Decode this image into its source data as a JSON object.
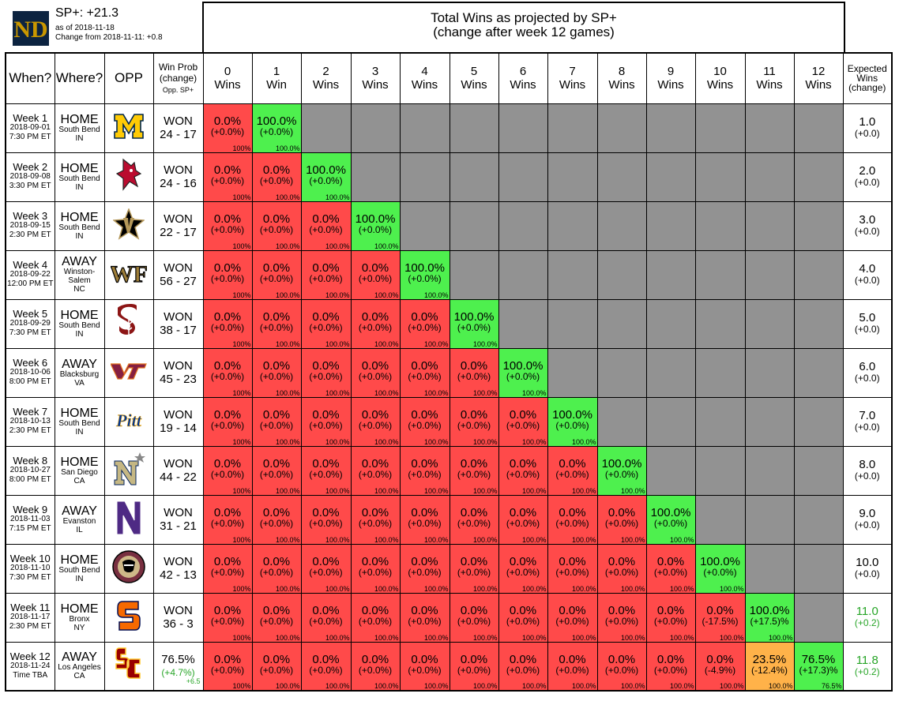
{
  "header": {
    "sp_plus": "SP+: +21.3",
    "as_of": "as of 2018-11-18",
    "change_from": "Change from 2018-11-11: +0.8",
    "title_line1": "Total Wins as projected by SP+",
    "title_line2": "(change after week 12 games)",
    "logo_icon": "notre-dame-nd-logo-icon"
  },
  "columns": {
    "when": "When?",
    "where": "Where?",
    "opp": "OPP",
    "winprob_line1": "Win Prob",
    "winprob_line2": "(change)",
    "winprob_line3": "Opp. SP+",
    "win_counts": [
      "0",
      "1",
      "2",
      "3",
      "4",
      "5",
      "6",
      "7",
      "8",
      "9",
      "10",
      "11",
      "12"
    ],
    "win_word": "Wins",
    "win_word_singular": "Win",
    "expected_line1": "Expected",
    "expected_line2": "Wins",
    "expected_line3": "(change)"
  },
  "colors": {
    "red": "#ff4a4a",
    "green": "#4ef04e",
    "orange": "#ffb249",
    "gray": "#929292",
    "highlight_text": "#27a527"
  },
  "games": [
    {
      "week": "Week 1",
      "date": "2018-09-01",
      "time": "7:30 PM ET",
      "ha": "HOME",
      "city": "South Bend",
      "state": "IN",
      "opp_icon": "michigan-block-m-logo-icon",
      "result_label": "WON",
      "score": "24 - 17",
      "expected": "1.0",
      "exp_change": "(+0.0)",
      "exp_highlight": false,
      "cells": [
        {
          "p": "0.0%",
          "c": "(+0.0%)",
          "cum": "100%",
          "color": "red"
        },
        {
          "p": "100.0%",
          "c": "(+0.0%)",
          "cum": "100.0%",
          "color": "green"
        }
      ]
    },
    {
      "week": "Week 2",
      "date": "2018-09-08",
      "time": "3:30 PM ET",
      "ha": "HOME",
      "city": "South Bend",
      "state": "IN",
      "opp_icon": "ball-state-cardinal-logo-icon",
      "result_label": "WON",
      "score": "24 - 16",
      "expected": "2.0",
      "exp_change": "(+0.0)",
      "exp_highlight": false,
      "cells": [
        {
          "p": "0.0%",
          "c": "(+0.0%)",
          "cum": "100%",
          "color": "red"
        },
        {
          "p": "0.0%",
          "c": "(+0.0%)",
          "cum": "100.0%",
          "color": "red"
        },
        {
          "p": "100.0%",
          "c": "(+0.0%)",
          "cum": "100.0%",
          "color": "green"
        }
      ]
    },
    {
      "week": "Week 3",
      "date": "2018-09-15",
      "time": "2:30 PM ET",
      "ha": "HOME",
      "city": "South Bend",
      "state": "IN",
      "opp_icon": "vanderbilt-star-v-logo-icon",
      "result_label": "WON",
      "score": "22 - 17",
      "expected": "3.0",
      "exp_change": "(+0.0)",
      "exp_highlight": false,
      "cells": [
        {
          "p": "0.0%",
          "c": "(+0.0%)",
          "cum": "100%",
          "color": "red"
        },
        {
          "p": "0.0%",
          "c": "(+0.0%)",
          "cum": "100.0%",
          "color": "red"
        },
        {
          "p": "0.0%",
          "c": "(+0.0%)",
          "cum": "100.0%",
          "color": "red"
        },
        {
          "p": "100.0%",
          "c": "(+0.0%)",
          "cum": "100.0%",
          "color": "green"
        }
      ]
    },
    {
      "week": "Week 4",
      "date": "2018-09-22",
      "time": "12:00 PM ET",
      "ha": "AWAY",
      "city": "Winston-Salem",
      "state": "NC",
      "opp_icon": "wake-forest-wf-logo-icon",
      "result_label": "WON",
      "score": "56 - 27",
      "expected": "4.0",
      "exp_change": "(+0.0)",
      "exp_highlight": false,
      "cells": [
        {
          "p": "0.0%",
          "c": "(+0.0%)",
          "cum": "100%",
          "color": "red"
        },
        {
          "p": "0.0%",
          "c": "(+0.0%)",
          "cum": "100.0%",
          "color": "red"
        },
        {
          "p": "0.0%",
          "c": "(+0.0%)",
          "cum": "100.0%",
          "color": "red"
        },
        {
          "p": "0.0%",
          "c": "(+0.0%)",
          "cum": "100.0%",
          "color": "red"
        },
        {
          "p": "100.0%",
          "c": "(+0.0%)",
          "cum": "100.0%",
          "color": "green"
        }
      ]
    },
    {
      "week": "Week 5",
      "date": "2018-09-29",
      "time": "7:30 PM ET",
      "ha": "HOME",
      "city": "South Bend",
      "state": "IN",
      "opp_icon": "stanford-s-tree-logo-icon",
      "result_label": "WON",
      "score": "38 - 17",
      "expected": "5.0",
      "exp_change": "(+0.0)",
      "exp_highlight": false,
      "cells": [
        {
          "p": "0.0%",
          "c": "(+0.0%)",
          "cum": "100%",
          "color": "red"
        },
        {
          "p": "0.0%",
          "c": "(+0.0%)",
          "cum": "100.0%",
          "color": "red"
        },
        {
          "p": "0.0%",
          "c": "(+0.0%)",
          "cum": "100.0%",
          "color": "red"
        },
        {
          "p": "0.0%",
          "c": "(+0.0%)",
          "cum": "100.0%",
          "color": "red"
        },
        {
          "p": "0.0%",
          "c": "(+0.0%)",
          "cum": "100.0%",
          "color": "red"
        },
        {
          "p": "100.0%",
          "c": "(+0.0%)",
          "cum": "100.0%",
          "color": "green"
        }
      ]
    },
    {
      "week": "Week 6",
      "date": "2018-10-06",
      "time": "8:00 PM ET",
      "ha": "AWAY",
      "city": "Blacksburg",
      "state": "VA",
      "opp_icon": "virginia-tech-vt-logo-icon",
      "result_label": "WON",
      "score": "45 - 23",
      "expected": "6.0",
      "exp_change": "(+0.0)",
      "exp_highlight": false,
      "cells": [
        {
          "p": "0.0%",
          "c": "(+0.0%)",
          "cum": "100%",
          "color": "red"
        },
        {
          "p": "0.0%",
          "c": "(+0.0%)",
          "cum": "100.0%",
          "color": "red"
        },
        {
          "p": "0.0%",
          "c": "(+0.0%)",
          "cum": "100.0%",
          "color": "red"
        },
        {
          "p": "0.0%",
          "c": "(+0.0%)",
          "cum": "100.0%",
          "color": "red"
        },
        {
          "p": "0.0%",
          "c": "(+0.0%)",
          "cum": "100.0%",
          "color": "red"
        },
        {
          "p": "0.0%",
          "c": "(+0.0%)",
          "cum": "100.0%",
          "color": "red"
        },
        {
          "p": "100.0%",
          "c": "(+0.0%)",
          "cum": "100.0%",
          "color": "green"
        }
      ]
    },
    {
      "week": "Week 7",
      "date": "2018-10-13",
      "time": "2:30 PM ET",
      "ha": "HOME",
      "city": "South Bend",
      "state": "IN",
      "opp_icon": "pitt-script-logo-icon",
      "result_label": "WON",
      "score": "19 - 14",
      "expected": "7.0",
      "exp_change": "(+0.0)",
      "exp_highlight": false,
      "cells": [
        {
          "p": "0.0%",
          "c": "(+0.0%)",
          "cum": "100%",
          "color": "red"
        },
        {
          "p": "0.0%",
          "c": "(+0.0%)",
          "cum": "100.0%",
          "color": "red"
        },
        {
          "p": "0.0%",
          "c": "(+0.0%)",
          "cum": "100.0%",
          "color": "red"
        },
        {
          "p": "0.0%",
          "c": "(+0.0%)",
          "cum": "100.0%",
          "color": "red"
        },
        {
          "p": "0.0%",
          "c": "(+0.0%)",
          "cum": "100.0%",
          "color": "red"
        },
        {
          "p": "0.0%",
          "c": "(+0.0%)",
          "cum": "100.0%",
          "color": "red"
        },
        {
          "p": "0.0%",
          "c": "(+0.0%)",
          "cum": "100.0%",
          "color": "red"
        },
        {
          "p": "100.0%",
          "c": "(+0.0%)",
          "cum": "100.0%",
          "color": "green"
        }
      ]
    },
    {
      "week": "Week 8",
      "date": "2018-10-27",
      "time": "8:00 PM ET",
      "ha": "HOME",
      "city": "San Diego",
      "state": "CA",
      "opp_icon": "navy-n-star-logo-icon",
      "result_label": "WON",
      "score": "44 - 22",
      "expected": "8.0",
      "exp_change": "(+0.0)",
      "exp_highlight": false,
      "cells": [
        {
          "p": "0.0%",
          "c": "(+0.0%)",
          "cum": "100%",
          "color": "red"
        },
        {
          "p": "0.0%",
          "c": "(+0.0%)",
          "cum": "100.0%",
          "color": "red"
        },
        {
          "p": "0.0%",
          "c": "(+0.0%)",
          "cum": "100.0%",
          "color": "red"
        },
        {
          "p": "0.0%",
          "c": "(+0.0%)",
          "cum": "100.0%",
          "color": "red"
        },
        {
          "p": "0.0%",
          "c": "(+0.0%)",
          "cum": "100.0%",
          "color": "red"
        },
        {
          "p": "0.0%",
          "c": "(+0.0%)",
          "cum": "100.0%",
          "color": "red"
        },
        {
          "p": "0.0%",
          "c": "(+0.0%)",
          "cum": "100.0%",
          "color": "red"
        },
        {
          "p": "0.0%",
          "c": "(+0.0%)",
          "cum": "100.0%",
          "color": "red"
        },
        {
          "p": "100.0%",
          "c": "(+0.0%)",
          "cum": "100.0%",
          "color": "green"
        }
      ]
    },
    {
      "week": "Week 9",
      "date": "2018-11-03",
      "time": "7:15 PM ET",
      "ha": "AWAY",
      "city": "Evanston",
      "state": "IL",
      "opp_icon": "northwestern-n-logo-icon",
      "result_label": "WON",
      "score": "31 - 21",
      "expected": "9.0",
      "exp_change": "(+0.0)",
      "exp_highlight": false,
      "cells": [
        {
          "p": "0.0%",
          "c": "(+0.0%)",
          "cum": "100%",
          "color": "red"
        },
        {
          "p": "0.0%",
          "c": "(+0.0%)",
          "cum": "100.0%",
          "color": "red"
        },
        {
          "p": "0.0%",
          "c": "(+0.0%)",
          "cum": "100.0%",
          "color": "red"
        },
        {
          "p": "0.0%",
          "c": "(+0.0%)",
          "cum": "100.0%",
          "color": "red"
        },
        {
          "p": "0.0%",
          "c": "(+0.0%)",
          "cum": "100.0%",
          "color": "red"
        },
        {
          "p": "0.0%",
          "c": "(+0.0%)",
          "cum": "100.0%",
          "color": "red"
        },
        {
          "p": "0.0%",
          "c": "(+0.0%)",
          "cum": "100.0%",
          "color": "red"
        },
        {
          "p": "0.0%",
          "c": "(+0.0%)",
          "cum": "100.0%",
          "color": "red"
        },
        {
          "p": "0.0%",
          "c": "(+0.0%)",
          "cum": "100.0%",
          "color": "red"
        },
        {
          "p": "100.0%",
          "c": "(+0.0%)",
          "cum": "100.0%",
          "color": "green"
        }
      ]
    },
    {
      "week": "Week 10",
      "date": "2018-11-10",
      "time": "7:30 PM ET",
      "ha": "HOME",
      "city": "South Bend",
      "state": "IN",
      "opp_icon": "florida-state-seminole-logo-icon",
      "result_label": "WON",
      "score": "42 - 13",
      "expected": "10.0",
      "exp_change": "(+0.0)",
      "exp_highlight": false,
      "cells": [
        {
          "p": "0.0%",
          "c": "(+0.0%)",
          "cum": "100%",
          "color": "red"
        },
        {
          "p": "0.0%",
          "c": "(+0.0%)",
          "cum": "100.0%",
          "color": "red"
        },
        {
          "p": "0.0%",
          "c": "(+0.0%)",
          "cum": "100.0%",
          "color": "red"
        },
        {
          "p": "0.0%",
          "c": "(+0.0%)",
          "cum": "100.0%",
          "color": "red"
        },
        {
          "p": "0.0%",
          "c": "(+0.0%)",
          "cum": "100.0%",
          "color": "red"
        },
        {
          "p": "0.0%",
          "c": "(+0.0%)",
          "cum": "100.0%",
          "color": "red"
        },
        {
          "p": "0.0%",
          "c": "(+0.0%)",
          "cum": "100.0%",
          "color": "red"
        },
        {
          "p": "0.0%",
          "c": "(+0.0%)",
          "cum": "100.0%",
          "color": "red"
        },
        {
          "p": "0.0%",
          "c": "(+0.0%)",
          "cum": "100.0%",
          "color": "red"
        },
        {
          "p": "0.0%",
          "c": "(+0.0%)",
          "cum": "100.0%",
          "color": "red"
        },
        {
          "p": "100.0%",
          "c": "(+0.0%)",
          "cum": "100.0%",
          "color": "green"
        }
      ]
    },
    {
      "week": "Week 11",
      "date": "2018-11-17",
      "time": "2:30 PM ET",
      "ha": "HOME",
      "city": "Bronx",
      "state": "NY",
      "opp_icon": "syracuse-s-logo-icon",
      "result_label": "WON",
      "score": "36 - 3",
      "expected": "11.0",
      "exp_change": "(+0.2)",
      "exp_highlight": true,
      "cells": [
        {
          "p": "0.0%",
          "c": "(+0.0%)",
          "cum": "100%",
          "color": "red"
        },
        {
          "p": "0.0%",
          "c": "(+0.0%)",
          "cum": "100.0%",
          "color": "red"
        },
        {
          "p": "0.0%",
          "c": "(+0.0%)",
          "cum": "100.0%",
          "color": "red"
        },
        {
          "p": "0.0%",
          "c": "(+0.0%)",
          "cum": "100.0%",
          "color": "red"
        },
        {
          "p": "0.0%",
          "c": "(+0.0%)",
          "cum": "100.0%",
          "color": "red"
        },
        {
          "p": "0.0%",
          "c": "(+0.0%)",
          "cum": "100.0%",
          "color": "red"
        },
        {
          "p": "0.0%",
          "c": "(+0.0%)",
          "cum": "100.0%",
          "color": "red"
        },
        {
          "p": "0.0%",
          "c": "(+0.0%)",
          "cum": "100.0%",
          "color": "red"
        },
        {
          "p": "0.0%",
          "c": "(+0.0%)",
          "cum": "100.0%",
          "color": "red"
        },
        {
          "p": "0.0%",
          "c": "(+0.0%)",
          "cum": "100.0%",
          "color": "red"
        },
        {
          "p": "0.0%",
          "c": "(-17.5%)",
          "cum": "100.0%",
          "color": "red"
        },
        {
          "p": "100.0%",
          "c": "(+17.5)%",
          "cum": "100.0%",
          "color": "green"
        }
      ]
    },
    {
      "week": "Week 12",
      "date": "2018-11-24",
      "time": "Time TBA",
      "ha": "AWAY",
      "city": "Los Angeles",
      "state": "CA",
      "opp_icon": "usc-sc-logo-icon",
      "result_label": "",
      "score": "",
      "win_prob": "76.5%",
      "win_prob_change": "(+4.7%)",
      "opp_sp": "+6.5",
      "expected": "11.8",
      "exp_change": "(+0.2)",
      "exp_highlight": true,
      "cells": [
        {
          "p": "0.0%",
          "c": "(+0.0%)",
          "cum": "100%",
          "color": "red"
        },
        {
          "p": "0.0%",
          "c": "(+0.0%)",
          "cum": "100.0%",
          "color": "red"
        },
        {
          "p": "0.0%",
          "c": "(+0.0%)",
          "cum": "100.0%",
          "color": "red"
        },
        {
          "p": "0.0%",
          "c": "(+0.0%)",
          "cum": "100.0%",
          "color": "red"
        },
        {
          "p": "0.0%",
          "c": "(+0.0%)",
          "cum": "100.0%",
          "color": "red"
        },
        {
          "p": "0.0%",
          "c": "(+0.0%)",
          "cum": "100.0%",
          "color": "red"
        },
        {
          "p": "0.0%",
          "c": "(+0.0%)",
          "cum": "100.0%",
          "color": "red"
        },
        {
          "p": "0.0%",
          "c": "(+0.0%)",
          "cum": "100.0%",
          "color": "red"
        },
        {
          "p": "0.0%",
          "c": "(+0.0%)",
          "cum": "100.0%",
          "color": "red"
        },
        {
          "p": "0.0%",
          "c": "(+0.0%)",
          "cum": "100.0%",
          "color": "red"
        },
        {
          "p": "0.0%",
          "c": "(-4.9%)",
          "cum": "100.0%",
          "color": "red"
        },
        {
          "p": "23.5%",
          "c": "(-12.4%)",
          "cum": "100.0%",
          "color": "orange"
        },
        {
          "p": "76.5%",
          "c": "(+17.3)%",
          "cum": "76.5%",
          "color": "green"
        }
      ]
    }
  ]
}
